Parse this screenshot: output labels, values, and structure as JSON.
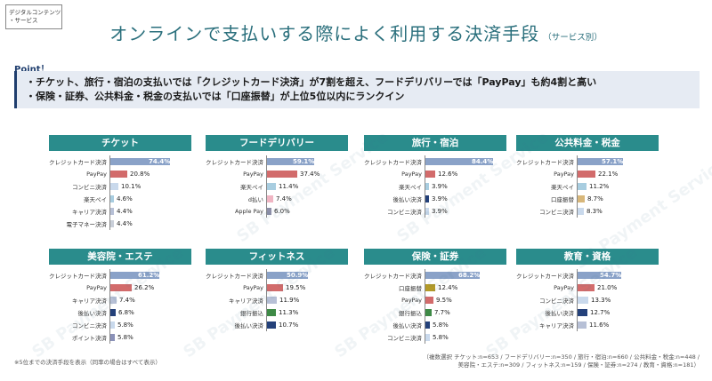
{
  "corner_tag": {
    "line1": "デジタルコンテンツ",
    "line2": "・サービス"
  },
  "title": "オンラインで支払いする際によく利用する決済手段",
  "title_sub": "（サービス別）",
  "point_label": "Point！",
  "point_lines": [
    "・チケット、旅行・宿泊の支払いでは「クレジットカード決済」が7割を超え、フードデリバリーでは「PayPay」も約4割と高い",
    "・保険・証券、公共料金・税金の支払いでは「口座振替」が上位5位以内にランクイン"
  ],
  "colors": {
    "credit": "#8aa2c8",
    "paypay": "#d26b6b",
    "konbini": "#c9d9ec",
    "rakuten": "#a8cde0",
    "carrier": "#b7c0d6",
    "emoney": "#c9cfd9",
    "dbarai": "#f0b5c3",
    "applepay": "#8d8fa8",
    "koza": "#d8b77a",
    "atobarai": "#24417a",
    "ginko": "#3e8a46",
    "point": "#8a91b8",
    "gold": "#b49a27",
    "header": "#2a8c8c"
  },
  "chart_data": [
    {
      "type": "bar",
      "title": "チケット",
      "categories": [
        "クレジットカード決済",
        "PayPay",
        "コンビニ決済",
        "楽天ペイ",
        "キャリア決済",
        "電子マネー決済"
      ],
      "values": [
        74.4,
        20.8,
        10.1,
        4.6,
        4.4,
        4.4
      ],
      "value_labels": [
        "74.4%",
        "20.8%",
        "10.1%",
        "4.6%",
        "4.4%",
        "4.4%"
      ],
      "colors": [
        "#8aa2c8",
        "#d26b6b",
        "#c9d9ec",
        "#a8cde0",
        "#b7c0d6",
        "#c9cfd9"
      ],
      "xlim": [
        0,
        100
      ]
    },
    {
      "type": "bar",
      "title": "フードデリバリー",
      "categories": [
        "クレジットカード決済",
        "PayPay",
        "楽天ペイ",
        "d払い",
        "Apple Pay"
      ],
      "values": [
        59.1,
        37.4,
        11.4,
        7.4,
        6.0
      ],
      "value_labels": [
        "59.1%",
        "37.4%",
        "11.4%",
        "7.4%",
        "6.0%"
      ],
      "colors": [
        "#8aa2c8",
        "#d26b6b",
        "#a8cde0",
        "#f0b5c3",
        "#8d8fa8"
      ],
      "xlim": [
        0,
        100
      ]
    },
    {
      "type": "bar",
      "title": "旅行・宿泊",
      "categories": [
        "クレジットカード決済",
        "PayPay",
        "楽天ペイ",
        "後払い決済",
        "コンビニ決済"
      ],
      "values": [
        84.4,
        12.6,
        3.9,
        3.9,
        3.9
      ],
      "value_labels": [
        "84.4%",
        "12.6%",
        "3.9%",
        "3.9%",
        "3.9%"
      ],
      "colors": [
        "#8aa2c8",
        "#d26b6b",
        "#a8cde0",
        "#24417a",
        "#c9d9ec"
      ],
      "xlim": [
        0,
        100
      ]
    },
    {
      "type": "bar",
      "title": "公共料金・税金",
      "categories": [
        "クレジットカード決済",
        "PayPay",
        "楽天ペイ",
        "口座振替",
        "コンビニ決済"
      ],
      "values": [
        57.1,
        22.1,
        11.2,
        8.7,
        8.3
      ],
      "value_labels": [
        "57.1%",
        "22.1%",
        "11.2%",
        "8.7%",
        "8.3%"
      ],
      "colors": [
        "#8aa2c8",
        "#d26b6b",
        "#a8cde0",
        "#d8b77a",
        "#c9d9ec"
      ],
      "xlim": [
        0,
        100
      ]
    },
    {
      "type": "bar",
      "title": "美容院・エステ",
      "categories": [
        "クレジットカード決済",
        "PayPay",
        "キャリア決済",
        "後払い決済",
        "コンビニ決済",
        "ポイント決済"
      ],
      "values": [
        61.2,
        26.2,
        7.4,
        6.8,
        5.8,
        5.8
      ],
      "value_labels": [
        "61.2%",
        "26.2%",
        "7.4%",
        "6.8%",
        "5.8%",
        "5.8%"
      ],
      "colors": [
        "#8aa2c8",
        "#d26b6b",
        "#b7c0d6",
        "#24417a",
        "#c9d9ec",
        "#8a91b8"
      ],
      "xlim": [
        0,
        100
      ]
    },
    {
      "type": "bar",
      "title": "フィットネス",
      "categories": [
        "クレジットカード決済",
        "PayPay",
        "キャリア決済",
        "銀行振込",
        "後払い決済"
      ],
      "values": [
        50.9,
        19.5,
        11.9,
        11.3,
        10.7
      ],
      "value_labels": [
        "50.9%",
        "19.5%",
        "11.9%",
        "11.3%",
        "10.7%"
      ],
      "colors": [
        "#8aa2c8",
        "#d26b6b",
        "#b7c0d6",
        "#3e8a46",
        "#24417a"
      ],
      "xlim": [
        0,
        100
      ]
    },
    {
      "type": "bar",
      "title": "保険・証券",
      "categories": [
        "クレジットカード決済",
        "口座振替",
        "PayPay",
        "銀行振込",
        "後払い決済",
        "コンビニ決済"
      ],
      "values": [
        68.2,
        12.4,
        9.5,
        7.7,
        5.8,
        5.8
      ],
      "value_labels": [
        "68.2%",
        "12.4%",
        "9.5%",
        "7.7%",
        "5.8%",
        "5.8%"
      ],
      "colors": [
        "#8aa2c8",
        "#b49a27",
        "#d26b6b",
        "#3e8a46",
        "#24417a",
        "#c9d9ec"
      ],
      "xlim": [
        0,
        100
      ]
    },
    {
      "type": "bar",
      "title": "教育・資格",
      "categories": [
        "クレジットカード決済",
        "PayPay",
        "コンビニ決済",
        "後払い決済",
        "キャリア決済"
      ],
      "values": [
        54.7,
        21.0,
        13.3,
        12.7,
        11.6
      ],
      "value_labels": [
        "54.7%",
        "21.0%",
        "13.3%",
        "12.7%",
        "11.6%"
      ],
      "colors": [
        "#8aa2c8",
        "#d26b6b",
        "#c9d9ec",
        "#24417a",
        "#b7c0d6"
      ],
      "xlim": [
        0,
        100
      ]
    }
  ],
  "footnote": "※5位までの決済手段を表示（同率の場合はすべて表示）",
  "samples": {
    "line1": "（複数選択 チケット:n=653 / フードデリバリー:n=350 / 旅行・宿泊:n=660 / 公共料金・税金:n=448 /",
    "line2": "美容院・エステ:n=309 / フィットネス:n=159 / 保険・証券:n=274 / 教育・資格:n=181）"
  },
  "watermark_text": "SB Payment Service"
}
